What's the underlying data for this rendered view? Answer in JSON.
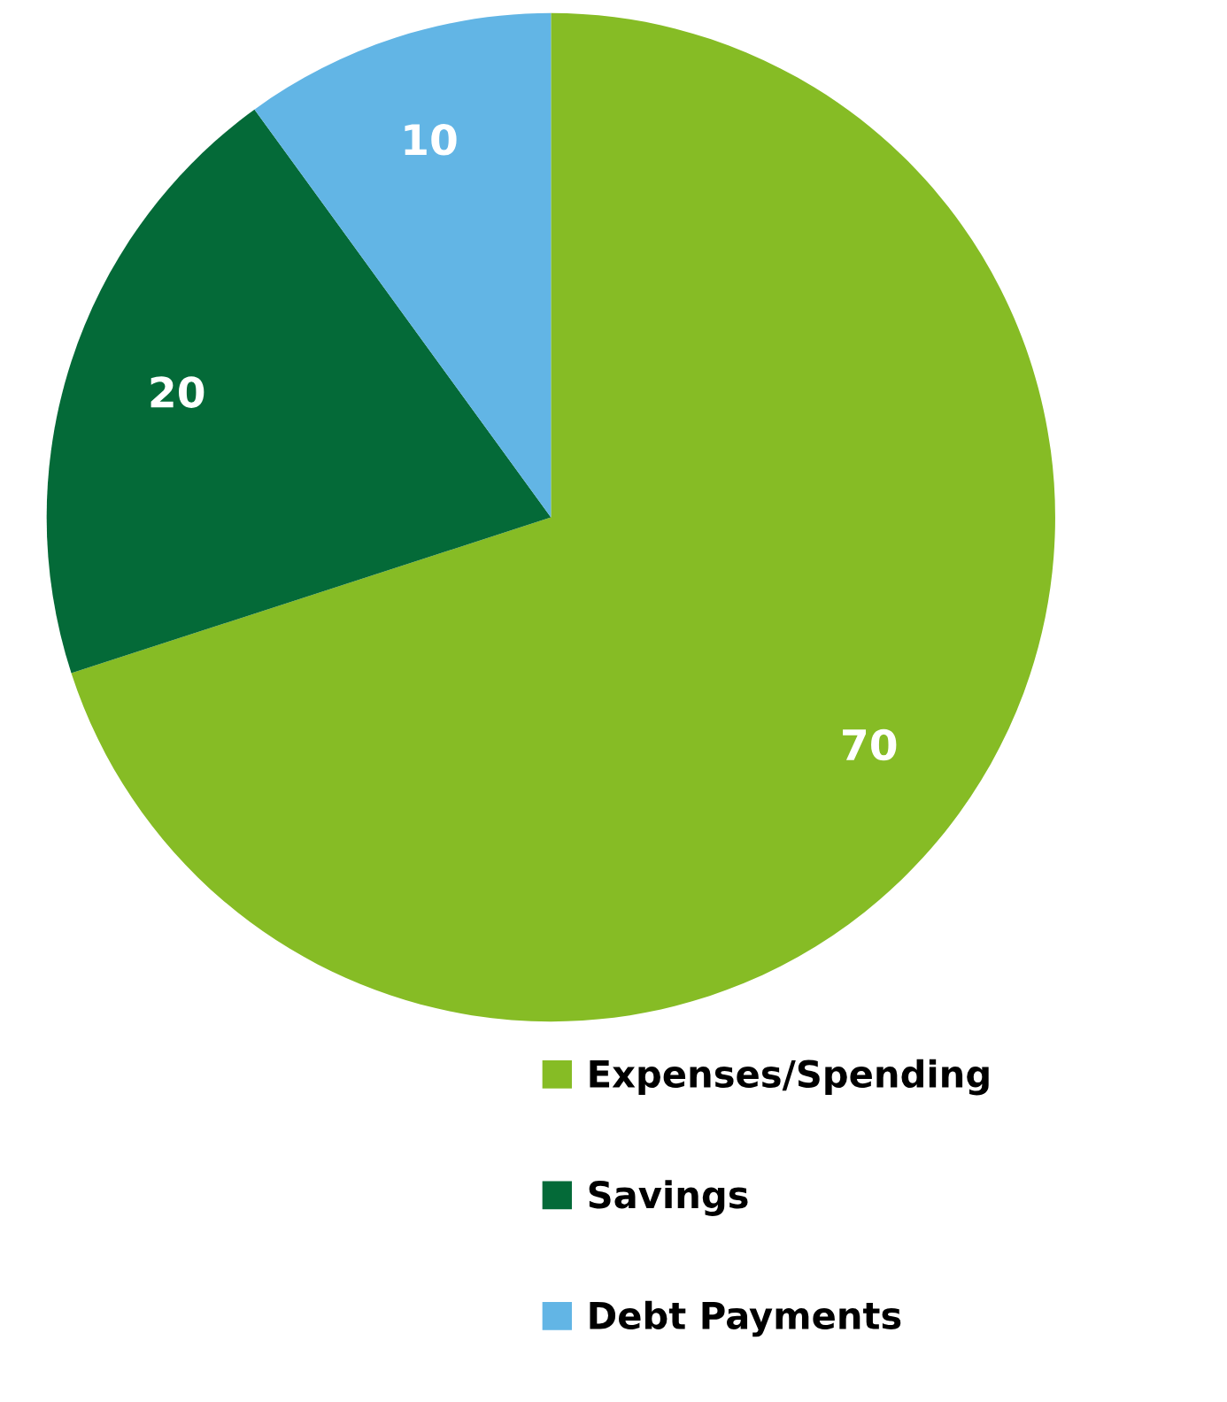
{
  "chart_data": {
    "type": "pie",
    "categories": [
      "Expenses/Spending",
      "Savings",
      "Debt Payments"
    ],
    "values": [
      70,
      20,
      10
    ],
    "colors": [
      "#86bc25",
      "#046a38",
      "#62b5e5"
    ],
    "data_labels": true,
    "legend": "bottom right"
  }
}
